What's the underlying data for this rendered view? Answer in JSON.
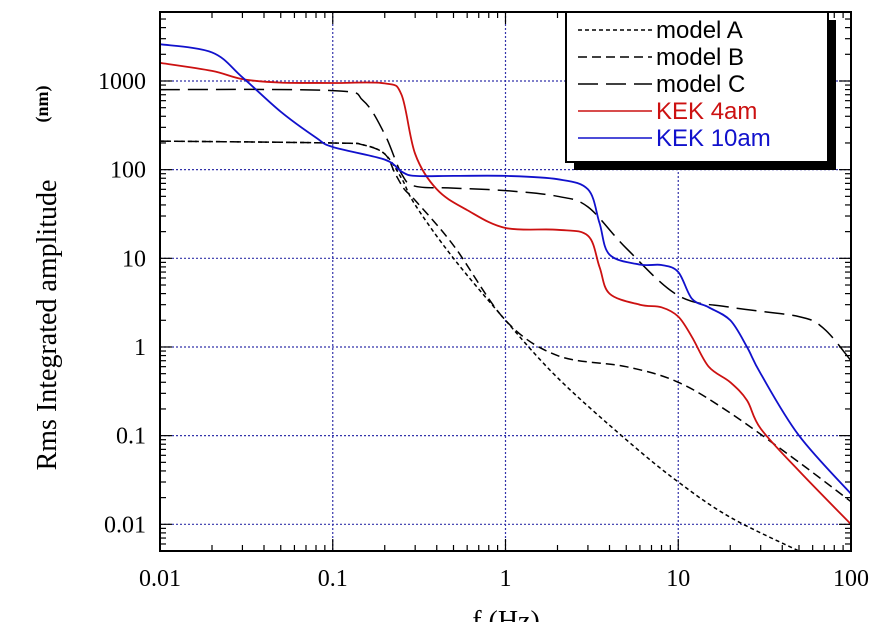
{
  "chart_data": {
    "type": "line",
    "xlabel": "f (Hz)",
    "ylabel": "Rms Integrated amplitude",
    "ylabel_unit": "(nm)",
    "x_scale": "log",
    "y_scale": "log",
    "xlim": [
      0.01,
      100
    ],
    "ylim": [
      0.005,
      6000
    ],
    "x_ticks": [
      0.01,
      0.1,
      1,
      10,
      100
    ],
    "x_tick_labels": [
      "0.01",
      "0.1",
      "1",
      "10",
      "100"
    ],
    "y_ticks": [
      0.01,
      0.1,
      1,
      10,
      100,
      1000
    ],
    "y_tick_labels": [
      "0.01",
      "0.1",
      "1",
      "10",
      "100",
      "1000"
    ],
    "grid": true,
    "legend_position": "top-right",
    "colors": {
      "gridline": "#3333aa",
      "model": "#000000",
      "kek_4am": "#cc1111",
      "kek_10am": "#1111cc"
    },
    "series": [
      {
        "name": "model A",
        "style": "short-dash",
        "color": "#000000",
        "x": [
          0.01,
          0.1,
          0.15,
          0.2,
          0.25,
          0.3,
          0.5,
          1,
          2,
          5,
          10,
          20,
          50
        ],
        "y": [
          210,
          200,
          190,
          150,
          80,
          40,
          10,
          2,
          0.45,
          0.09,
          0.03,
          0.012,
          0.005
        ]
      },
      {
        "name": "model B",
        "style": "medium-dash",
        "color": "#000000",
        "x": [
          0.01,
          0.1,
          0.15,
          0.2,
          0.23,
          0.26,
          0.3,
          0.5,
          1,
          2,
          5,
          10,
          20,
          50,
          100
        ],
        "y": [
          210,
          200,
          190,
          150,
          90,
          60,
          45,
          14,
          2,
          0.8,
          0.6,
          0.4,
          0.18,
          0.05,
          0.018
        ]
      },
      {
        "name": "model C",
        "style": "long-dash",
        "color": "#000000",
        "x": [
          0.01,
          0.1,
          0.15,
          0.2,
          0.25,
          0.3,
          0.5,
          1,
          2,
          3,
          5,
          10,
          20,
          50,
          70,
          100
        ],
        "y": [
          800,
          780,
          600,
          250,
          90,
          65,
          62,
          58,
          50,
          38,
          13,
          3.8,
          2.8,
          2.2,
          1.6,
          0.7
        ]
      },
      {
        "name": "KEK 4am",
        "style": "solid",
        "color": "#cc1111",
        "x": [
          0.01,
          0.02,
          0.03,
          0.05,
          0.1,
          0.2,
          0.25,
          0.3,
          0.4,
          0.6,
          1,
          2,
          3,
          3.5,
          4,
          6,
          8,
          10,
          12,
          15,
          20,
          25,
          30,
          50,
          100
        ],
        "y": [
          1600,
          1300,
          1050,
          960,
          950,
          940,
          700,
          150,
          60,
          35,
          22,
          21,
          18,
          8,
          4,
          3,
          2.8,
          2.2,
          1.3,
          0.6,
          0.4,
          0.25,
          0.12,
          0.04,
          0.01
        ]
      },
      {
        "name": "KEK 10am",
        "style": "solid",
        "color": "#1111cc",
        "x": [
          0.01,
          0.02,
          0.03,
          0.05,
          0.08,
          0.1,
          0.2,
          0.25,
          0.3,
          0.5,
          1,
          2,
          3,
          3.5,
          4,
          6,
          8,
          10,
          12,
          15,
          20,
          25,
          30,
          50,
          100
        ],
        "y": [
          2600,
          2100,
          1100,
          450,
          230,
          180,
          130,
          95,
          85,
          85,
          85,
          78,
          60,
          25,
          11,
          8.5,
          8.4,
          7,
          3.5,
          2.8,
          2,
          1.0,
          0.5,
          0.1,
          0.022
        ]
      }
    ]
  }
}
